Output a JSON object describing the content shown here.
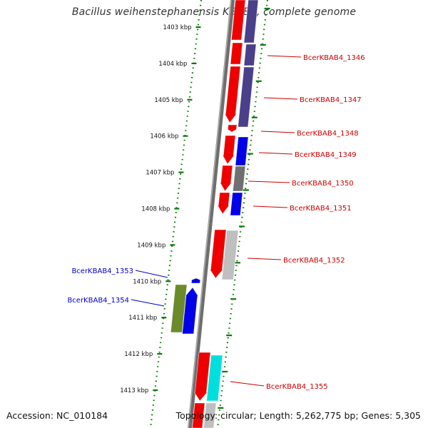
{
  "title": "Bacillus weihenstephanensis KBAB4, complete genome",
  "accession": "Accession: NC_010184",
  "summary": "Topology: circular; Length: 5,262,775 bp; Genes: 5,305",
  "colors": {
    "tick": "#0a7a0a",
    "backbone": "#7a7a7a",
    "cds_red": "#ee0000",
    "cds_navy": "#4a3f8a",
    "cds_blue": "#0000e8",
    "cds_gray": "#707070",
    "cds_lightgray": "#bfbfbf",
    "cds_olive": "#6b8a2a",
    "cds_cyan": "#00dede",
    "label_red": "#cc0000",
    "label_blue": "#0000cc"
  },
  "ticks": [
    "1403 kbp",
    "1404 kbp",
    "1405 kbp",
    "1406 kbp",
    "1407 kbp",
    "1408 kbp",
    "1409 kbp",
    "1410 kbp",
    "1411 kbp",
    "1412 kbp",
    "1413 kbp"
  ],
  "gene_labels": [
    {
      "text": "BcerKBAB4_1346",
      "side": "right",
      "color": "#cc0000"
    },
    {
      "text": "BcerKBAB4_1347",
      "side": "right",
      "color": "#cc0000"
    },
    {
      "text": "BcerKBAB4_1348",
      "side": "right",
      "color": "#cc0000"
    },
    {
      "text": "BcerKBAB4_1349",
      "side": "right",
      "color": "#cc0000"
    },
    {
      "text": "BcerKBAB4_1350",
      "side": "right",
      "color": "#cc0000"
    },
    {
      "text": "BcerKBAB4_1351",
      "side": "right",
      "color": "#cc0000"
    },
    {
      "text": "BcerKBAB4_1352",
      "side": "right",
      "color": "#cc0000"
    },
    {
      "text": "BcerKBAB4_1353",
      "side": "left",
      "color": "#0000cc"
    },
    {
      "text": "BcerKBAB4_1354",
      "side": "left",
      "color": "#0000cc"
    },
    {
      "text": "BcerKBAB4_1355",
      "side": "right",
      "color": "#cc0000"
    }
  ]
}
